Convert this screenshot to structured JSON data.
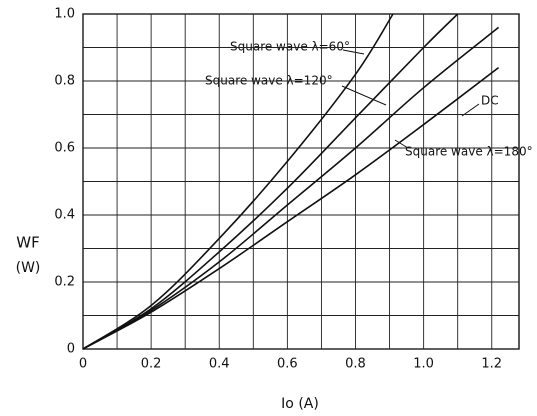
{
  "chart_data": {
    "type": "line",
    "xlabel": "Io (A)",
    "ylabel": "WF",
    "yunit": "(W)",
    "xlim": [
      0,
      1.28
    ],
    "ylim": [
      0,
      1
    ],
    "xticks": [
      0,
      0.2,
      0.4,
      0.6,
      0.8,
      {
        "value": 1,
        "label": "1.0"
      },
      1.2
    ],
    "yticks": [
      0,
      0.2,
      0.4,
      0.6,
      0.8,
      {
        "value": 1,
        "label": "1.0"
      }
    ],
    "xminor": [
      0.1,
      0.3,
      0.5,
      0.7,
      0.9,
      1.1
    ],
    "yminor": [
      0.1,
      0.3,
      0.5,
      0.7,
      0.9
    ],
    "grid": true,
    "series": [
      {
        "name": "Square wave λ=60°",
        "color": "#111111",
        "x": [
          0,
          0.2,
          0.4,
          0.6,
          0.8,
          0.91
        ],
        "values": [
          0,
          0.13,
          0.33,
          0.56,
          0.82,
          1.0
        ]
      },
      {
        "name": "Square wave λ=120°",
        "color": "#111111",
        "x": [
          0,
          0.2,
          0.4,
          0.6,
          0.8,
          1.0,
          1.1
        ],
        "values": [
          0,
          0.12,
          0.29,
          0.48,
          0.69,
          0.9,
          1.0
        ]
      },
      {
        "name": "DC",
        "color": "#111111",
        "x": [
          0,
          0.2,
          0.4,
          0.6,
          0.8,
          1.0,
          1.22
        ],
        "values": [
          0,
          0.115,
          0.26,
          0.43,
          0.6,
          0.78,
          0.96
        ]
      },
      {
        "name": "Square wave λ=180°",
        "color": "#111111",
        "x": [
          0,
          0.2,
          0.4,
          0.6,
          0.8,
          1.0,
          1.22
        ],
        "values": [
          0,
          0.11,
          0.24,
          0.38,
          0.52,
          0.67,
          0.84
        ]
      }
    ]
  }
}
